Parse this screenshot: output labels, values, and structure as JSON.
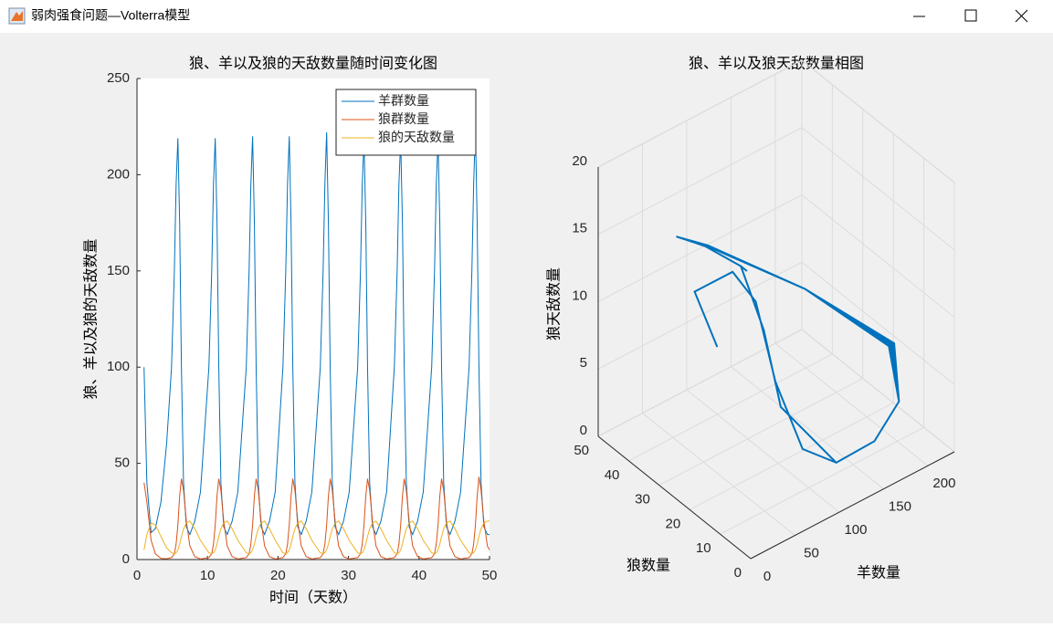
{
  "window": {
    "title": "弱肉强食问题—Volterra模型"
  },
  "chart_data": [
    {
      "type": "line",
      "title": "狼、羊以及狼的天敌数量随时间变化图",
      "xlabel": "时间（天数）",
      "ylabel": "狼、羊以及狼的天敌数量",
      "x": [
        1,
        1.4,
        2.0,
        2.6,
        3.4,
        4.2,
        4.9,
        5.3,
        5.55,
        5.8,
        6.05,
        6.3,
        6.6,
        7.0,
        7.5,
        8.2,
        9.0,
        10.2,
        10.6,
        10.85,
        11.1,
        11.35,
        11.6,
        11.9,
        12.3,
        12.8,
        13.5,
        14.3,
        15.5,
        15.9,
        16.15,
        16.4,
        16.65,
        16.9,
        17.2,
        17.6,
        18.1,
        18.8,
        19.6,
        20.7,
        21.1,
        21.35,
        21.6,
        21.85,
        22.1,
        22.4,
        22.8,
        23.3,
        24.0,
        24.8,
        26.0,
        26.4,
        26.65,
        26.9,
        27.15,
        27.4,
        27.7,
        28.1,
        28.6,
        29.3,
        30.1,
        31.3,
        31.7,
        31.95,
        32.2,
        32.45,
        32.7,
        33.0,
        33.4,
        33.9,
        34.6,
        35.4,
        36.5,
        36.9,
        37.15,
        37.4,
        37.65,
        37.9,
        38.2,
        38.6,
        39.1,
        39.8,
        40.6,
        41.8,
        42.2,
        42.45,
        42.7,
        42.95,
        43.2,
        43.5,
        43.9,
        44.4,
        45.1,
        45.9,
        47.1,
        47.5,
        47.75,
        48.0,
        48.25,
        48.5,
        48.8,
        49.2,
        49.7,
        50
      ],
      "series": [
        {
          "name": "羊群数量",
          "color": "#0072bd",
          "values": [
            100,
            40,
            14,
            16,
            30,
            60,
            100,
            150,
            195,
            219,
            175,
            100,
            40,
            17,
            13,
            20,
            35,
            100,
            150,
            195,
            219,
            175,
            100,
            40,
            17,
            13,
            20,
            35,
            100,
            150,
            195,
            220,
            175,
            100,
            40,
            17,
            13,
            20,
            35,
            100,
            150,
            195,
            220,
            175,
            100,
            40,
            17,
            13,
            20,
            35,
            100,
            150,
            195,
            222,
            175,
            100,
            40,
            17,
            13,
            20,
            35,
            100,
            150,
            195,
            218,
            175,
            100,
            40,
            17,
            13,
            20,
            35,
            100,
            150,
            195,
            218,
            175,
            100,
            40,
            17,
            13,
            20,
            35,
            100,
            150,
            195,
            218,
            175,
            100,
            40,
            17,
            13,
            20,
            35,
            100,
            150,
            195,
            224,
            175,
            100,
            40,
            17,
            13,
            13
          ]
        },
        {
          "name": "狼群数量",
          "color": "#d95319",
          "values": [
            40,
            30,
            10,
            3,
            0.6,
            0.4,
            1,
            3,
            8,
            18,
            33,
            42,
            36,
            20,
            7,
            1.5,
            0.3,
            1,
            3,
            8,
            18,
            33,
            42,
            36,
            20,
            7,
            1.5,
            0.3,
            1,
            3,
            8,
            18,
            33,
            42,
            36,
            20,
            7,
            1.5,
            0.3,
            1,
            3,
            8,
            18,
            33,
            42,
            36,
            20,
            7,
            1.5,
            0.3,
            1,
            3,
            8,
            18,
            33,
            42,
            36,
            20,
            7,
            1.5,
            0.3,
            1,
            3,
            8,
            18,
            33,
            42,
            36,
            20,
            7,
            1.5,
            0.3,
            1,
            3,
            8,
            18,
            33,
            42,
            36,
            20,
            7,
            1.5,
            0.3,
            1,
            3,
            8,
            18,
            33,
            42,
            36,
            20,
            7,
            1.5,
            0.3,
            1,
            3,
            8,
            18,
            33,
            43,
            36,
            20,
            7,
            5
          ]
        },
        {
          "name": "狼的天敌数量",
          "color": "#edb120",
          "values": [
            5,
            13,
            19,
            18,
            12,
            6,
            3.5,
            3,
            3.5,
            5,
            8,
            12,
            16,
            19,
            20,
            16,
            10,
            3.5,
            3,
            3.5,
            5,
            8,
            12,
            16,
            19,
            20,
            16,
            10,
            3.5,
            3,
            3.5,
            5,
            8,
            12,
            16,
            19,
            20,
            16,
            10,
            3.5,
            3,
            3.5,
            5,
            8,
            12,
            16,
            19,
            20,
            16,
            10,
            3.5,
            3,
            3.5,
            5,
            8,
            12,
            16,
            19,
            20,
            16,
            10,
            3.5,
            3,
            3.5,
            5,
            8,
            12,
            16,
            19,
            20,
            16,
            10,
            3.5,
            3,
            3.5,
            5,
            8,
            12,
            16,
            19,
            20,
            16,
            10,
            3.5,
            3,
            3.5,
            5,
            8,
            12,
            16,
            19,
            20,
            16,
            10,
            3.5,
            3,
            3.5,
            5,
            8,
            12,
            16,
            19,
            20,
            20
          ]
        }
      ],
      "xlim": [
        0,
        50
      ],
      "ylim": [
        0,
        250
      ],
      "xticks": [
        0,
        10,
        20,
        30,
        40,
        50
      ],
      "yticks": [
        0,
        50,
        100,
        150,
        200,
        250
      ],
      "legend": "upper right",
      "grid": false
    },
    {
      "type": "line3d",
      "title": "狼、羊以及狼天敌数量相图",
      "xlabel": "羊数量",
      "ylabel": "狼数量",
      "zlabel": "狼天敌数量",
      "color": "#0072bd",
      "xlim": [
        0,
        230
      ],
      "ylim": [
        0,
        50
      ],
      "zlim": [
        0,
        20
      ],
      "xticks": [
        0,
        50,
        100,
        150,
        200
      ],
      "yticks": [
        0,
        10,
        20,
        30,
        40,
        50
      ],
      "zticks": [
        0,
        5,
        10,
        15,
        20
      ],
      "grid": true
    }
  ]
}
